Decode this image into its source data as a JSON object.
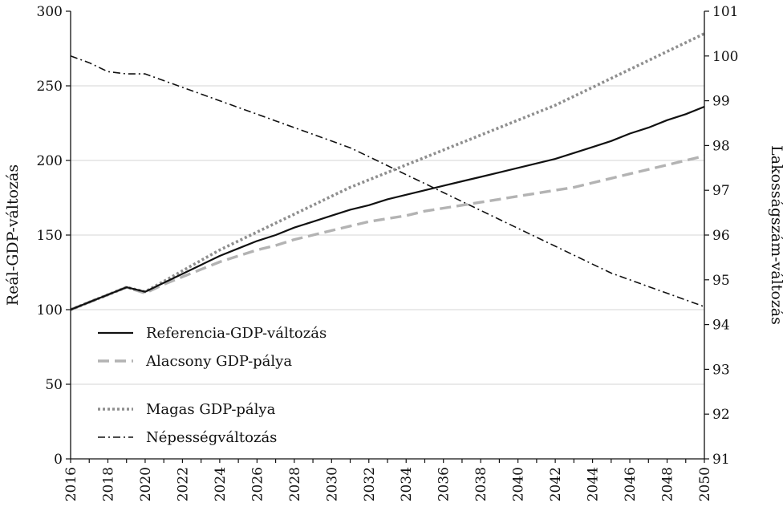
{
  "chart_data": {
    "type": "line",
    "x": [
      2016,
      2017,
      2018,
      2019,
      2020,
      2021,
      2022,
      2023,
      2024,
      2025,
      2026,
      2027,
      2028,
      2029,
      2030,
      2031,
      2032,
      2033,
      2034,
      2035,
      2036,
      2037,
      2038,
      2039,
      2040,
      2041,
      2042,
      2043,
      2044,
      2045,
      2046,
      2047,
      2048,
      2049,
      2050
    ],
    "x_ticks": [
      "2016",
      "2018",
      "2020",
      "2022",
      "2024",
      "2026",
      "2028",
      "2030",
      "2032",
      "2034",
      "2036",
      "2038",
      "2040",
      "2042",
      "2044",
      "2046",
      "2048",
      "2050"
    ],
    "xlim": [
      2016,
      2050
    ],
    "y_left": {
      "label": "Reál-GDP-változás",
      "ylim": [
        0,
        300
      ],
      "ticks": [
        "0",
        "50",
        "100",
        "150",
        "200",
        "250",
        "300"
      ]
    },
    "y_right": {
      "label": "Lakosságszám-változás",
      "ylim": [
        91,
        101
      ],
      "ticks": [
        "91",
        "92",
        "93",
        "94",
        "95",
        "96",
        "97",
        "98",
        "99",
        "100",
        "101"
      ]
    },
    "grid": "horizontal",
    "legend_position": "bottom-left",
    "series": [
      {
        "name": "Referencia-GDP-változás",
        "axis": "left",
        "color": "#111111",
        "style": "solid",
        "values": [
          100,
          105,
          110,
          115,
          112,
          118,
          124,
          130,
          136,
          141,
          146,
          150,
          155,
          159,
          163,
          167,
          170,
          174,
          177,
          180,
          183,
          186,
          189,
          192,
          195,
          198,
          201,
          205,
          209,
          213,
          218,
          222,
          227,
          231,
          236
        ]
      },
      {
        "name": "Alacsony GDP-pálya",
        "axis": "left",
        "color": "#b3b3b3",
        "style": "dashed",
        "values": [
          100,
          105,
          110,
          115,
          111,
          117,
          122,
          127,
          132,
          136,
          140,
          143,
          147,
          150,
          153,
          156,
          159,
          161,
          163,
          166,
          168,
          170,
          172,
          174,
          176,
          178,
          180,
          182,
          185,
          188,
          191,
          194,
          197,
          200,
          203
        ]
      },
      {
        "name": "Magas GDP-pálya",
        "axis": "left",
        "color": "#8f8f8f",
        "style": "dotted",
        "values": [
          100,
          105,
          110,
          115,
          112,
          119,
          126,
          133,
          140,
          146,
          152,
          158,
          164,
          170,
          176,
          182,
          187,
          192,
          197,
          202,
          207,
          212,
          217,
          222,
          227,
          232,
          237,
          243,
          249,
          255,
          261,
          267,
          273,
          279,
          285
        ]
      },
      {
        "name": "Népességváltozás",
        "axis": "right",
        "color": "#111111",
        "style": "dashdot",
        "values": [
          100.0,
          99.85,
          99.65,
          99.6,
          99.6,
          99.45,
          99.3,
          99.15,
          99.0,
          98.85,
          98.7,
          98.55,
          98.4,
          98.25,
          98.1,
          97.95,
          97.75,
          97.55,
          97.35,
          97.15,
          96.95,
          96.75,
          96.55,
          96.35,
          96.15,
          95.95,
          95.75,
          95.55,
          95.35,
          95.15,
          95.0,
          94.85,
          94.7,
          94.55,
          94.4
        ]
      }
    ]
  }
}
